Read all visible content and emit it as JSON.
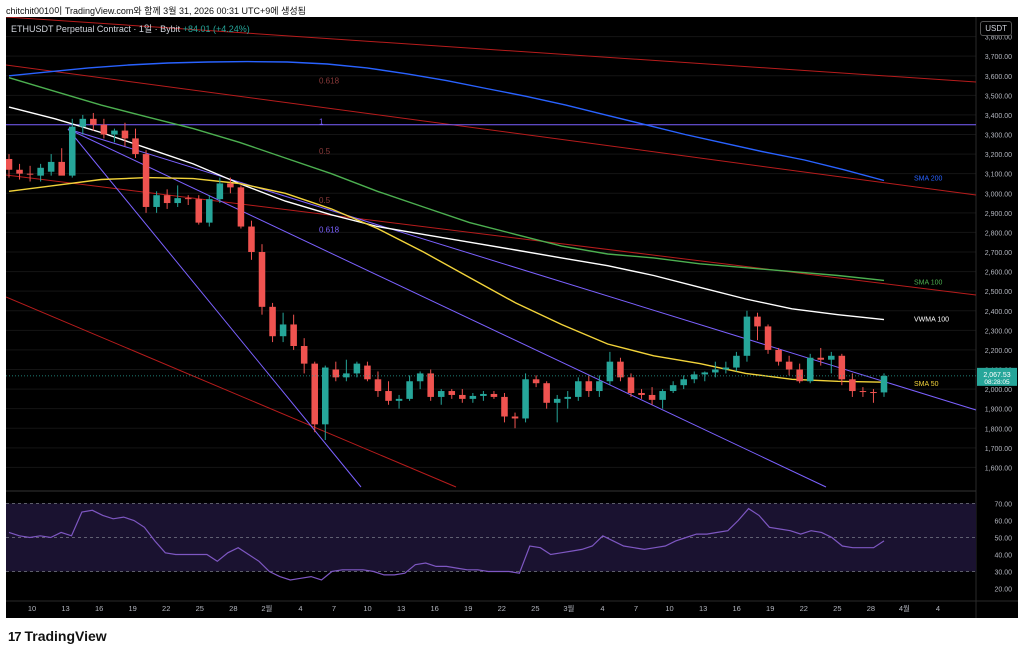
{
  "header": {
    "caption": "chitchit0010이 TradingView.com와 함께 3월 31, 2026 00:31 UTC+9에 생성됨"
  },
  "legend": {
    "symbol": "ETHUSDT Perpetual Contract · 1일 · Bybit",
    "change": "+84.01 (+4.24%)"
  },
  "currency_button": "USDT",
  "brand": {
    "name": "TradingView",
    "mark": "17"
  },
  "colors": {
    "up": "#26a69a",
    "down": "#ef5350",
    "sma50": "#f2d33a",
    "sma100": "#4caf50",
    "sma200": "#2962ff",
    "vwma100": "#ffffff",
    "channel": "#7b61ff",
    "red_lines": "#b71c1c"
  },
  "chart_data": {
    "type": "candlestick",
    "symbol": "ETHUSDT Perpetual Contract",
    "interval": "1일",
    "exchange": "Bybit",
    "last_price": "2,067.53",
    "countdown": "08:28:05",
    "price_axis": {
      "range": [
        1500,
        3900
      ],
      "ticks": [
        "3,800.00",
        "3,700.00",
        "3,600.00",
        "3,500.00",
        "3,400.00",
        "3,300.00",
        "3,200.00",
        "3,100.00",
        "3,000.00",
        "2,900.00",
        "2,800.00",
        "2,700.00",
        "2,600.00",
        "2,500.00",
        "2,400.00",
        "2,300.00",
        "2,200.00",
        "2,100.00",
        "2,000.00",
        "1,900.00",
        "1,800.00",
        "1,700.00",
        "1,600.00"
      ]
    },
    "time_axis": {
      "labels": [
        "10",
        "13",
        "16",
        "19",
        "22",
        "25",
        "28",
        "2월",
        "4",
        "7",
        "10",
        "13",
        "16",
        "19",
        "22",
        "25",
        "3월",
        "4",
        "7",
        "10",
        "13",
        "16",
        "19",
        "22",
        "25",
        "28",
        "4월",
        "4"
      ]
    },
    "candles": [
      {
        "o": 3175,
        "h": 3200,
        "l": 3080,
        "c": 3120
      },
      {
        "o": 3120,
        "h": 3150,
        "l": 3070,
        "c": 3100
      },
      {
        "o": 3100,
        "h": 3140,
        "l": 3060,
        "c": 3095
      },
      {
        "o": 3090,
        "h": 3150,
        "l": 3060,
        "c": 3130
      },
      {
        "o": 3110,
        "h": 3200,
        "l": 3090,
        "c": 3160
      },
      {
        "o": 3160,
        "h": 3230,
        "l": 3100,
        "c": 3090
      },
      {
        "o": 3090,
        "h": 3380,
        "l": 3080,
        "c": 3340
      },
      {
        "o": 3340,
        "h": 3400,
        "l": 3300,
        "c": 3380
      },
      {
        "o": 3380,
        "h": 3410,
        "l": 3320,
        "c": 3350
      },
      {
        "o": 3350,
        "h": 3380,
        "l": 3280,
        "c": 3300
      },
      {
        "o": 3300,
        "h": 3330,
        "l": 3260,
        "c": 3320
      },
      {
        "o": 3320,
        "h": 3360,
        "l": 3240,
        "c": 3280
      },
      {
        "o": 3280,
        "h": 3330,
        "l": 3180,
        "c": 3200
      },
      {
        "o": 3200,
        "h": 3220,
        "l": 2900,
        "c": 2930
      },
      {
        "o": 2930,
        "h": 3010,
        "l": 2900,
        "c": 2990
      },
      {
        "o": 2990,
        "h": 3020,
        "l": 2920,
        "c": 2950
      },
      {
        "o": 2950,
        "h": 3040,
        "l": 2930,
        "c": 2975
      },
      {
        "o": 2975,
        "h": 2990,
        "l": 2940,
        "c": 2970
      },
      {
        "o": 2970,
        "h": 2990,
        "l": 2840,
        "c": 2850
      },
      {
        "o": 2850,
        "h": 2990,
        "l": 2830,
        "c": 2970
      },
      {
        "o": 2970,
        "h": 3080,
        "l": 2950,
        "c": 3050
      },
      {
        "o": 3050,
        "h": 3080,
        "l": 3000,
        "c": 3030
      },
      {
        "o": 3030,
        "h": 3040,
        "l": 2820,
        "c": 2830
      },
      {
        "o": 2830,
        "h": 2860,
        "l": 2660,
        "c": 2700
      },
      {
        "o": 2700,
        "h": 2740,
        "l": 2380,
        "c": 2420
      },
      {
        "o": 2420,
        "h": 2440,
        "l": 2240,
        "c": 2270
      },
      {
        "o": 2270,
        "h": 2390,
        "l": 2240,
        "c": 2330
      },
      {
        "o": 2330,
        "h": 2380,
        "l": 2200,
        "c": 2220
      },
      {
        "o": 2220,
        "h": 2260,
        "l": 2080,
        "c": 2130
      },
      {
        "o": 2130,
        "h": 2140,
        "l": 1780,
        "c": 1820
      },
      {
        "o": 1820,
        "h": 2120,
        "l": 1740,
        "c": 2110
      },
      {
        "o": 2100,
        "h": 2140,
        "l": 2040,
        "c": 2060
      },
      {
        "o": 2060,
        "h": 2150,
        "l": 2040,
        "c": 2080
      },
      {
        "o": 2080,
        "h": 2140,
        "l": 2060,
        "c": 2130
      },
      {
        "o": 2120,
        "h": 2140,
        "l": 2040,
        "c": 2050
      },
      {
        "o": 2050,
        "h": 2090,
        "l": 1960,
        "c": 1990
      },
      {
        "o": 1990,
        "h": 2040,
        "l": 1920,
        "c": 1940
      },
      {
        "o": 1940,
        "h": 1970,
        "l": 1900,
        "c": 1950
      },
      {
        "o": 1950,
        "h": 2070,
        "l": 1940,
        "c": 2040
      },
      {
        "o": 2040,
        "h": 2090,
        "l": 2000,
        "c": 2080
      },
      {
        "o": 2080,
        "h": 2100,
        "l": 1940,
        "c": 1960
      },
      {
        "o": 1960,
        "h": 2000,
        "l": 1920,
        "c": 1990
      },
      {
        "o": 1990,
        "h": 2000,
        "l": 1950,
        "c": 1970
      },
      {
        "o": 1970,
        "h": 2000,
        "l": 1930,
        "c": 1950
      },
      {
        "o": 1950,
        "h": 1980,
        "l": 1930,
        "c": 1965
      },
      {
        "o": 1965,
        "h": 1990,
        "l": 1940,
        "c": 1975
      },
      {
        "o": 1975,
        "h": 1990,
        "l": 1950,
        "c": 1960
      },
      {
        "o": 1960,
        "h": 1980,
        "l": 1830,
        "c": 1860
      },
      {
        "o": 1860,
        "h": 1880,
        "l": 1800,
        "c": 1850
      },
      {
        "o": 1850,
        "h": 2080,
        "l": 1830,
        "c": 2050
      },
      {
        "o": 2050,
        "h": 2070,
        "l": 2010,
        "c": 2030
      },
      {
        "o": 2030,
        "h": 2040,
        "l": 1900,
        "c": 1930
      },
      {
        "o": 1930,
        "h": 1970,
        "l": 1830,
        "c": 1950
      },
      {
        "o": 1950,
        "h": 1990,
        "l": 1900,
        "c": 1960
      },
      {
        "o": 1960,
        "h": 2060,
        "l": 1940,
        "c": 2040
      },
      {
        "o": 2040,
        "h": 2070,
        "l": 1960,
        "c": 1990
      },
      {
        "o": 1990,
        "h": 2070,
        "l": 1960,
        "c": 2040
      },
      {
        "o": 2040,
        "h": 2190,
        "l": 2020,
        "c": 2140
      },
      {
        "o": 2140,
        "h": 2160,
        "l": 2040,
        "c": 2060
      },
      {
        "o": 2060,
        "h": 2080,
        "l": 1960,
        "c": 1980
      },
      {
        "o": 1980,
        "h": 2000,
        "l": 1950,
        "c": 1970
      },
      {
        "o": 1970,
        "h": 2010,
        "l": 1920,
        "c": 1945
      },
      {
        "o": 1945,
        "h": 2000,
        "l": 1900,
        "c": 1990
      },
      {
        "o": 1990,
        "h": 2040,
        "l": 1980,
        "c": 2020
      },
      {
        "o": 2020,
        "h": 2070,
        "l": 2000,
        "c": 2050
      },
      {
        "o": 2050,
        "h": 2090,
        "l": 2030,
        "c": 2075
      },
      {
        "o": 2075,
        "h": 2090,
        "l": 2040,
        "c": 2085
      },
      {
        "o": 2085,
        "h": 2140,
        "l": 2060,
        "c": 2100
      },
      {
        "o": 2100,
        "h": 2140,
        "l": 2080,
        "c": 2110
      },
      {
        "o": 2110,
        "h": 2190,
        "l": 2090,
        "c": 2170
      },
      {
        "o": 2170,
        "h": 2400,
        "l": 2140,
        "c": 2370
      },
      {
        "o": 2370,
        "h": 2390,
        "l": 2250,
        "c": 2320
      },
      {
        "o": 2320,
        "h": 2330,
        "l": 2180,
        "c": 2200
      },
      {
        "o": 2200,
        "h": 2210,
        "l": 2120,
        "c": 2140
      },
      {
        "o": 2140,
        "h": 2170,
        "l": 2070,
        "c": 2100
      },
      {
        "o": 2100,
        "h": 2130,
        "l": 2030,
        "c": 2040
      },
      {
        "o": 2040,
        "h": 2180,
        "l": 2030,
        "c": 2160
      },
      {
        "o": 2160,
        "h": 2210,
        "l": 2120,
        "c": 2150
      },
      {
        "o": 2150,
        "h": 2190,
        "l": 2080,
        "c": 2170
      },
      {
        "o": 2170,
        "h": 2180,
        "l": 2020,
        "c": 2050
      },
      {
        "o": 2050,
        "h": 2080,
        "l": 1960,
        "c": 1990
      },
      {
        "o": 1990,
        "h": 2010,
        "l": 1960,
        "c": 1985
      },
      {
        "o": 1985,
        "h": 2000,
        "l": 1930,
        "c": 1983
      },
      {
        "o": 1983,
        "h": 2080,
        "l": 1960,
        "c": 2067.53
      }
    ],
    "overlays": [
      {
        "name": "SMA 200",
        "color": "#2962ff",
        "points": [
          3600,
          3620,
          3640,
          3655,
          3665,
          3670,
          3672,
          3670,
          3660,
          3640,
          3610,
          3575,
          3535,
          3495,
          3450,
          3400,
          3350,
          3300,
          3255,
          3210,
          3170,
          3120,
          3065
        ]
      },
      {
        "name": "SMA 100",
        "color": "#4caf50",
        "points": [
          3590,
          3520,
          3450,
          3390,
          3330,
          3260,
          3180,
          3100,
          3010,
          2930,
          2850,
          2790,
          2730,
          2690,
          2670,
          2640,
          2620,
          2600,
          2580,
          2555
        ]
      },
      {
        "name": "VWMA 100",
        "color": "#ffffff",
        "points": [
          3440,
          3380,
          3310,
          3230,
          3150,
          3050,
          2960,
          2890,
          2830,
          2790,
          2750,
          2710,
          2670,
          2630,
          2580,
          2520,
          2460,
          2410,
          2380,
          2355
        ]
      },
      {
        "name": "SMA 50",
        "color": "#f2d33a",
        "points": [
          3010,
          3040,
          3070,
          3080,
          3075,
          3050,
          3000,
          2920,
          2820,
          2700,
          2570,
          2440,
          2330,
          2230,
          2170,
          2130,
          2080,
          2050,
          2040,
          2035
        ]
      }
    ],
    "fib_labels": [
      {
        "text": "0.618",
        "price": 3560
      },
      {
        "text": "0.5",
        "price": 3200
      },
      {
        "text": "1",
        "price": 3350
      },
      {
        "text": "0.5",
        "price": 2950
      },
      {
        "text": "0.618",
        "price": 2800
      }
    ],
    "line_labels": [
      {
        "text": "SMA 200",
        "price": 3080
      },
      {
        "text": "SMA 100",
        "price": 2550
      },
      {
        "text": "VWMA 100",
        "price": 2360
      },
      {
        "text": "SMA 50",
        "price": 2030
      }
    ],
    "rsi": {
      "name": "RSI",
      "range": [
        15,
        75
      ],
      "levels": [
        70,
        50,
        30
      ],
      "ticks": [
        "70.00",
        "60.00",
        "50.00",
        "40.00",
        "30.00",
        "20.00"
      ],
      "values": [
        53,
        51,
        50,
        51,
        50,
        53,
        51,
        65,
        66,
        63,
        61,
        62,
        60,
        56,
        48,
        41,
        40,
        40,
        40,
        40,
        36,
        41,
        44,
        40,
        36,
        30,
        27,
        25,
        26,
        27,
        25,
        30,
        31,
        31,
        31,
        30,
        28,
        28,
        29,
        34,
        35,
        33,
        33,
        32,
        31,
        31,
        30,
        30,
        30,
        29,
        45,
        44,
        40,
        41,
        42,
        43,
        45,
        51,
        48,
        45,
        44,
        43,
        44,
        45,
        48,
        50,
        52,
        52,
        53,
        54,
        60,
        67,
        63,
        56,
        55,
        54,
        52,
        54,
        53,
        50,
        45,
        44,
        44,
        44,
        48
      ]
    }
  }
}
